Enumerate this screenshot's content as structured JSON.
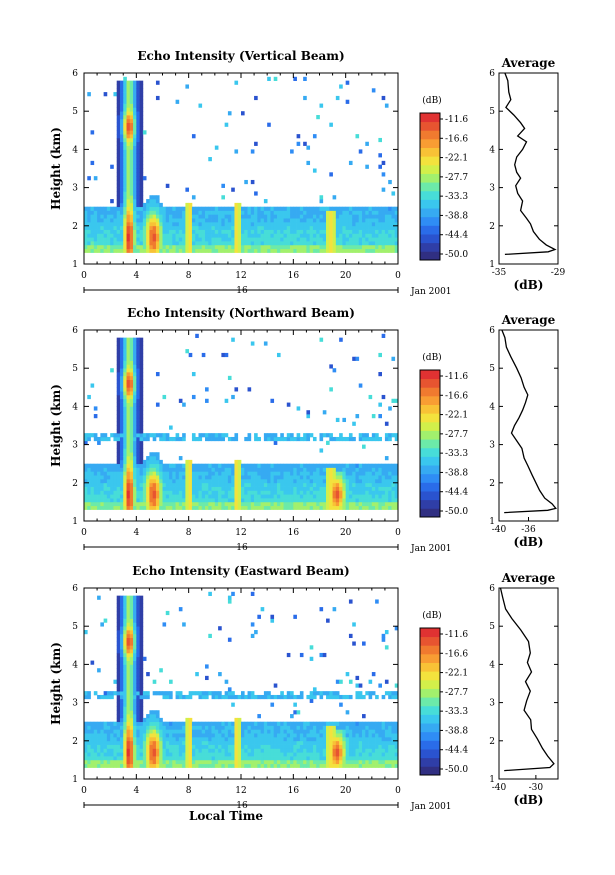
{
  "figure": {
    "date_label": "Jan 2001",
    "day_label": "16",
    "x_axis_label": "Local Time",
    "colorbar_unit": "(dB)",
    "average_title": "Average",
    "average_xlabel": "(dB)"
  },
  "colorbar": {
    "ticks": [
      "-11.6",
      "-16.6",
      "-22.1",
      "-27.7",
      "-33.3",
      "-38.8",
      "-44.4",
      "-50.0"
    ],
    "colors": [
      "#302f82",
      "#2f3ea7",
      "#2a53cf",
      "#2a6ce9",
      "#2f8df5",
      "#36aaf2",
      "#3ac7ee",
      "#47ddd8",
      "#6ceaa9",
      "#a2f06d",
      "#d2ef4a",
      "#f3e23d",
      "#f8c236",
      "#f89d33",
      "#f07a2f",
      "#e75430",
      "#e03232"
    ]
  },
  "chart_data": [
    {
      "type": "heatmap",
      "title": "Echo Intensity (Vertical Beam)",
      "xlabel": "",
      "ylabel": "Height (km)",
      "xlim": [
        0,
        24
      ],
      "ylim": [
        1,
        6
      ],
      "x_ticks": [
        "0",
        "4",
        "8",
        "12",
        "16",
        "20",
        "0"
      ],
      "y_ticks": [
        "1",
        "2",
        "3",
        "4",
        "5",
        "6"
      ],
      "profile": {
        "title": "Average",
        "xlabel": "(dB)",
        "x_ticks": [
          "-35",
          "-29"
        ],
        "xlim": [
          -35,
          -29
        ],
        "ylim": [
          1,
          6
        ],
        "y_ticks": [
          "1",
          "2",
          "3",
          "4",
          "5",
          "6"
        ],
        "points": [
          [
            -34.4,
            6
          ],
          [
            -34.1,
            5.8
          ],
          [
            -34,
            5.5
          ],
          [
            -33.8,
            5.3
          ],
          [
            -34.3,
            5.1
          ],
          [
            -33.5,
            4.9
          ],
          [
            -32.8,
            4.7
          ],
          [
            -32.4,
            4.55
          ],
          [
            -33.1,
            4.35
          ],
          [
            -32.2,
            4.2
          ],
          [
            -32.6,
            4
          ],
          [
            -33.2,
            3.8
          ],
          [
            -33.4,
            3.6
          ],
          [
            -33.2,
            3.4
          ],
          [
            -32.8,
            3.25
          ],
          [
            -33.3,
            3.05
          ],
          [
            -33.1,
            2.85
          ],
          [
            -32.6,
            2.65
          ],
          [
            -32.8,
            2.4
          ],
          [
            -32.2,
            2.2
          ],
          [
            -31.8,
            2.05
          ],
          [
            -31.5,
            1.85
          ],
          [
            -30.9,
            1.65
          ],
          [
            -30.2,
            1.5
          ],
          [
            -29.3,
            1.38
          ],
          [
            -30,
            1.32
          ],
          [
            -34.4,
            1.25
          ]
        ]
      }
    },
    {
      "type": "heatmap",
      "title": "Echo Intensity (Northward Beam)",
      "xlabel": "",
      "ylabel": "Height (km)",
      "xlim": [
        0,
        24
      ],
      "ylim": [
        1,
        6
      ],
      "x_ticks": [
        "0",
        "4",
        "8",
        "12",
        "16",
        "20",
        "0"
      ],
      "y_ticks": [
        "1",
        "2",
        "3",
        "4",
        "5",
        "6"
      ],
      "profile": {
        "title": "Average",
        "xlabel": "(dB)",
        "x_ticks": [
          "-40",
          "-36"
        ],
        "xlim": [
          -40,
          -32
        ],
        "ylim": [
          1,
          6
        ],
        "y_ticks": [
          "1",
          "2",
          "3",
          "4",
          "5",
          "6"
        ],
        "points": [
          [
            -39.6,
            6
          ],
          [
            -39.2,
            5.8
          ],
          [
            -39,
            5.55
          ],
          [
            -38.4,
            5.3
          ],
          [
            -37.6,
            5
          ],
          [
            -37,
            4.75
          ],
          [
            -36.6,
            4.5
          ],
          [
            -36.1,
            4.3
          ],
          [
            -36.4,
            4.1
          ],
          [
            -36.8,
            3.9
          ],
          [
            -37.3,
            3.7
          ],
          [
            -37.9,
            3.5
          ],
          [
            -38.3,
            3.3
          ],
          [
            -37.6,
            3.1
          ],
          [
            -36.9,
            2.9
          ],
          [
            -36.6,
            2.65
          ],
          [
            -36.1,
            2.45
          ],
          [
            -35.5,
            2.2
          ],
          [
            -35,
            2
          ],
          [
            -34.5,
            1.8
          ],
          [
            -33.8,
            1.6
          ],
          [
            -32.8,
            1.45
          ],
          [
            -32.3,
            1.33
          ],
          [
            -33.4,
            1.28
          ],
          [
            -39.3,
            1.22
          ]
        ]
      }
    },
    {
      "type": "heatmap",
      "title": "Echo Intensity (Eastward Beam)",
      "xlabel": "Local Time",
      "ylabel": "Height (km)",
      "xlim": [
        0,
        24
      ],
      "ylim": [
        1,
        6
      ],
      "x_ticks": [
        "0",
        "4",
        "8",
        "12",
        "16",
        "20",
        "0"
      ],
      "y_ticks": [
        "1",
        "2",
        "3",
        "4",
        "5",
        "6"
      ],
      "profile": {
        "title": "Average",
        "xlabel": "(dB)",
        "x_ticks": [
          "-40",
          "-30"
        ],
        "xlim": [
          -40,
          -24
        ],
        "ylim": [
          1,
          6
        ],
        "y_ticks": [
          "1",
          "2",
          "3",
          "4",
          "5",
          "6"
        ],
        "points": [
          [
            -39.6,
            6
          ],
          [
            -39,
            5.75
          ],
          [
            -38.2,
            5.45
          ],
          [
            -36.5,
            5.2
          ],
          [
            -34.1,
            4.9
          ],
          [
            -32,
            4.6
          ],
          [
            -31.5,
            4.3
          ],
          [
            -32.3,
            4.05
          ],
          [
            -31.2,
            3.8
          ],
          [
            -32.8,
            3.55
          ],
          [
            -31.5,
            3.3
          ],
          [
            -32.5,
            3.05
          ],
          [
            -33.2,
            2.8
          ],
          [
            -31.4,
            2.55
          ],
          [
            -31.2,
            2.3
          ],
          [
            -29.6,
            2.05
          ],
          [
            -28.2,
            1.8
          ],
          [
            -26.8,
            1.6
          ],
          [
            -25.1,
            1.4
          ],
          [
            -26.2,
            1.3
          ],
          [
            -38.6,
            1.22
          ]
        ]
      }
    }
  ]
}
